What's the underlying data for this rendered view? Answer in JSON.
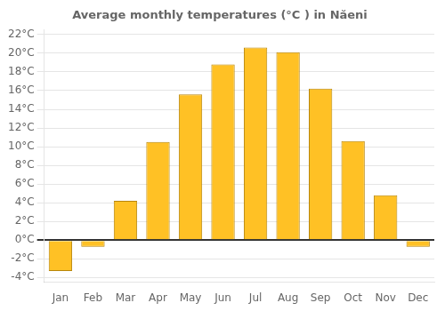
{
  "chart_data": {
    "type": "bar",
    "title": "Average monthly temperatures (°C ) in Năeni",
    "categories": [
      "Jan",
      "Feb",
      "Mar",
      "Apr",
      "May",
      "Jun",
      "Jul",
      "Aug",
      "Sep",
      "Oct",
      "Nov",
      "Dec"
    ],
    "values": [
      -3.3,
      -0.7,
      4.2,
      10.5,
      15.6,
      18.8,
      20.6,
      20.1,
      16.2,
      10.6,
      4.8,
      -0.7
    ],
    "color": "#FFC125",
    "ylim": [
      -4.5,
      22.5
    ],
    "yticks": [
      {
        "value": -4,
        "label": "-4°C"
      },
      {
        "value": -2,
        "label": "-2°C"
      },
      {
        "value": 0,
        "label": "0°C"
      },
      {
        "value": 2,
        "label": "2°C"
      },
      {
        "value": 4,
        "label": "4°C"
      },
      {
        "value": 6,
        "label": "6°C"
      },
      {
        "value": 8,
        "label": "8°C"
      },
      {
        "value": 10,
        "label": "10°C"
      },
      {
        "value": 12,
        "label": "12°C"
      },
      {
        "value": 14,
        "label": "14°C"
      },
      {
        "value": 16,
        "label": "16°C"
      },
      {
        "value": 18,
        "label": "18°C"
      },
      {
        "value": 20,
        "label": "20°C"
      },
      {
        "value": 22,
        "label": "22°C"
      }
    ],
    "grid": true
  }
}
